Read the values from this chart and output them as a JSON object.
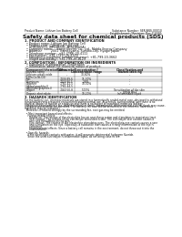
{
  "title": "Safety data sheet for chemical products (SDS)",
  "header_left": "Product Name: Lithium Ion Battery Cell",
  "header_right_line1": "Substance Number: SER-ANS-00010",
  "header_right_line2": "Establishment / Revision: Dec.7.2010",
  "section1_title": "1. PRODUCT AND COMPANY IDENTIFICATION",
  "section1_lines": [
    "  • Product name: Lithium Ion Battery Cell",
    "  • Product code: Cylindrical-type cell",
    "     (IHR18650U, IHR18650L, IHR18650A)",
    "  • Company name:    Sanyo Electric Co., Ltd., Mobile Energy Company",
    "  • Address:          2001  Kamitoyama, Sumoto-City, Hyogo, Japan",
    "  • Telephone number:  +81-(799)-20-4111",
    "  • Fax number:  +81-(799)-26-4129",
    "  • Emergency telephone number (daytime): +81-799-20-3662",
    "     (Night and holiday): +81-799-26-4129"
  ],
  "section2_title": "2. COMPOSITION / INFORMATION ON INGREDIENTS",
  "section2_intro": "  • Substance or preparation: Preparation",
  "section2_sub": "  • Information about the chemical nature of product:",
  "table_col0_header1": "Component/chemical name",
  "table_col0_header2": "Banned name",
  "table_col1_header": "CAS number",
  "table_col2_header": "Concentration /\nConcentration range",
  "table_col3_header": "Classification and\nhazard labeling",
  "table_rows": [
    [
      "Lithium cobalt oxide\n(LiMn-Co-Ni-O2)",
      "-",
      "30-60%",
      "-"
    ],
    [
      "Iron",
      "7439-89-6",
      "15-30%",
      "-"
    ],
    [
      "Aluminum",
      "7429-90-5",
      "2-8%",
      "-"
    ],
    [
      "Graphite\n(Aired graphite-l)\n(Artificial graphite-l)",
      "7782-42-5\n7782-44-5",
      "10-30%",
      "-"
    ],
    [
      "Copper",
      "7440-50-8",
      "5-15%",
      "Sensitization of the skin\ngroup No.2"
    ],
    [
      "Organic electrolyte",
      "-",
      "10-20%",
      "Inflammable liquid"
    ]
  ],
  "section3_title": "3. HAZARDS IDENTIFICATION",
  "section3_text": [
    "For the battery cell, chemical materials are stored in a hermetically sealed metal case, designed to withstand",
    "temperatures and pressures encountered during normal use. As a result, during normal use, there is no",
    "physical danger of ignition or explosion and there is no danger of hazardous materials leakage.",
    "  However, if exposed to a fire, added mechanical shock, decomposed, when external electric shock may cause,",
    "the gas release cannot be operated. The battery cell case will be breached of the extreme, hazardous",
    "materials may be released.",
    "  Moreover, if heated strongly by the surrounding fire, soot gas may be emitted.",
    "",
    "  • Most important hazard and effects:",
    "    Human health effects:",
    "      Inhalation: The release of the electrolyte has an anesthesia action and stimulates in respiratory tract.",
    "      Skin contact: The release of the electrolyte stimulates a skin. The electrolyte skin contact causes a",
    "      sore and stimulation on the skin.",
    "      Eye contact: The release of the electrolyte stimulates eyes. The electrolyte eye contact causes a sore",
    "      and stimulation on the eye. Especially, a substance that causes a strong inflammation of the eye is",
    "      contained.",
    "      Environmental effects: Since a battery cell remains in the environment, do not throw out it into the",
    "      environment.",
    "",
    "  • Specific hazards:",
    "    If the electrolyte contacts with water, it will generate detrimental hydrogen fluoride.",
    "    Since the used electrolyte is inflammable liquid, do not bring close to fire."
  ],
  "bg_color": "#ffffff",
  "text_color": "#111111",
  "line_color": "#555555",
  "title_fontsize": 4.2,
  "header_fontsize": 2.2,
  "body_fontsize": 2.3,
  "table_fontsize": 2.1,
  "section_title_fontsize": 2.5
}
